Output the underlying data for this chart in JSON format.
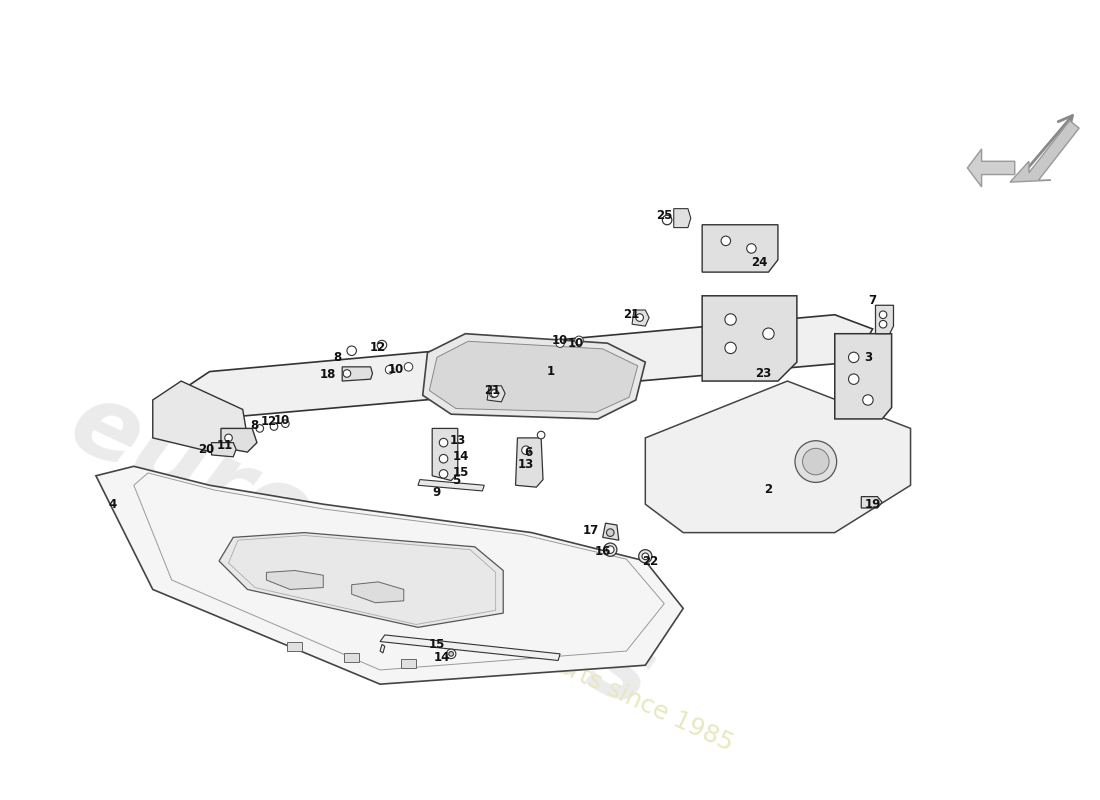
{
  "bg_color": "#ffffff",
  "lc": "#222222",
  "fc_light": "#f0f0f0",
  "fc_mid": "#e0e0e0",
  "fc_dark": "#cccccc",
  "ec": "#333333",
  "label_fontsize": 8.5,
  "wm1_color": "#d8d8d8",
  "wm2_color": "#e8e8c0",
  "arrow_fill": "#d0d0d0",
  "arrow_edge": "#999999"
}
